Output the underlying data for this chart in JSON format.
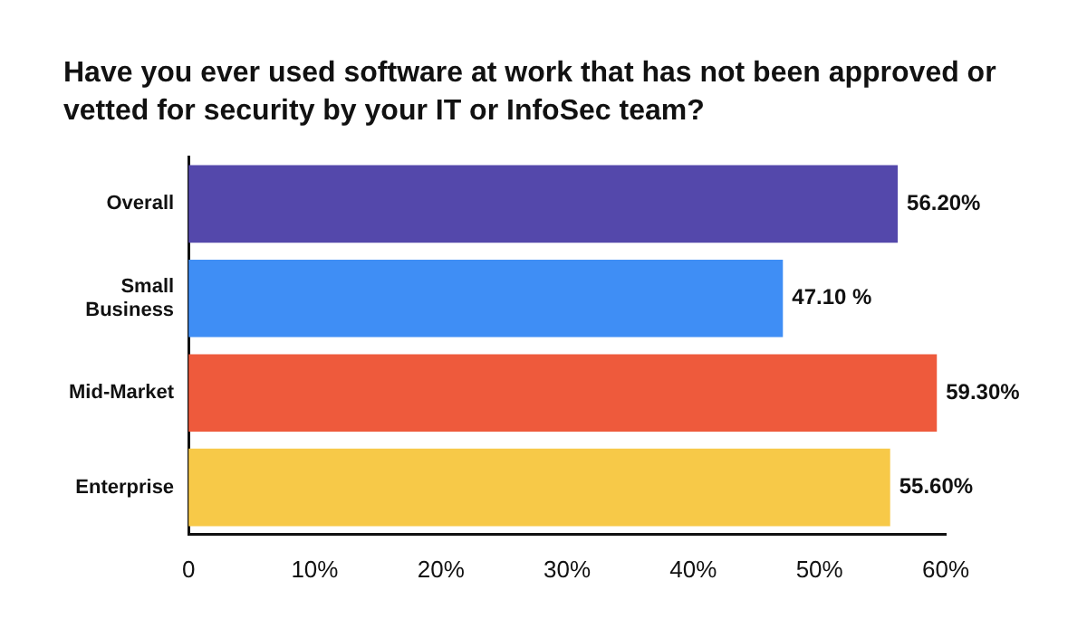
{
  "chart_data": {
    "type": "bar",
    "orientation": "horizontal",
    "title": "Have you ever used software at work that has not been approved or vetted for security by your IT or InfoSec team?",
    "categories": [
      "Overall",
      "Small Business",
      "Mid-Market",
      "Enterprise"
    ],
    "values": [
      56.2,
      47.1,
      59.3,
      55.6
    ],
    "colors": [
      "#5448ab",
      "#3f8ef5",
      "#ee5a3c",
      "#f7c948"
    ],
    "value_labels": [
      "56.20%",
      "47.10 %",
      "59.30%",
      "55.60%"
    ],
    "xlim": [
      0,
      60
    ],
    "xticks": [
      0,
      {
        "value": 10,
        "label": "10%"
      },
      {
        "value": 20,
        "label": "20%"
      },
      {
        "value": 30,
        "label": "30%"
      },
      {
        "value": 40,
        "label": "40%"
      },
      {
        "value": 50,
        "label": "50%"
      },
      {
        "value": 60,
        "label": "60%"
      }
    ],
    "grid": false,
    "legend": false
  }
}
